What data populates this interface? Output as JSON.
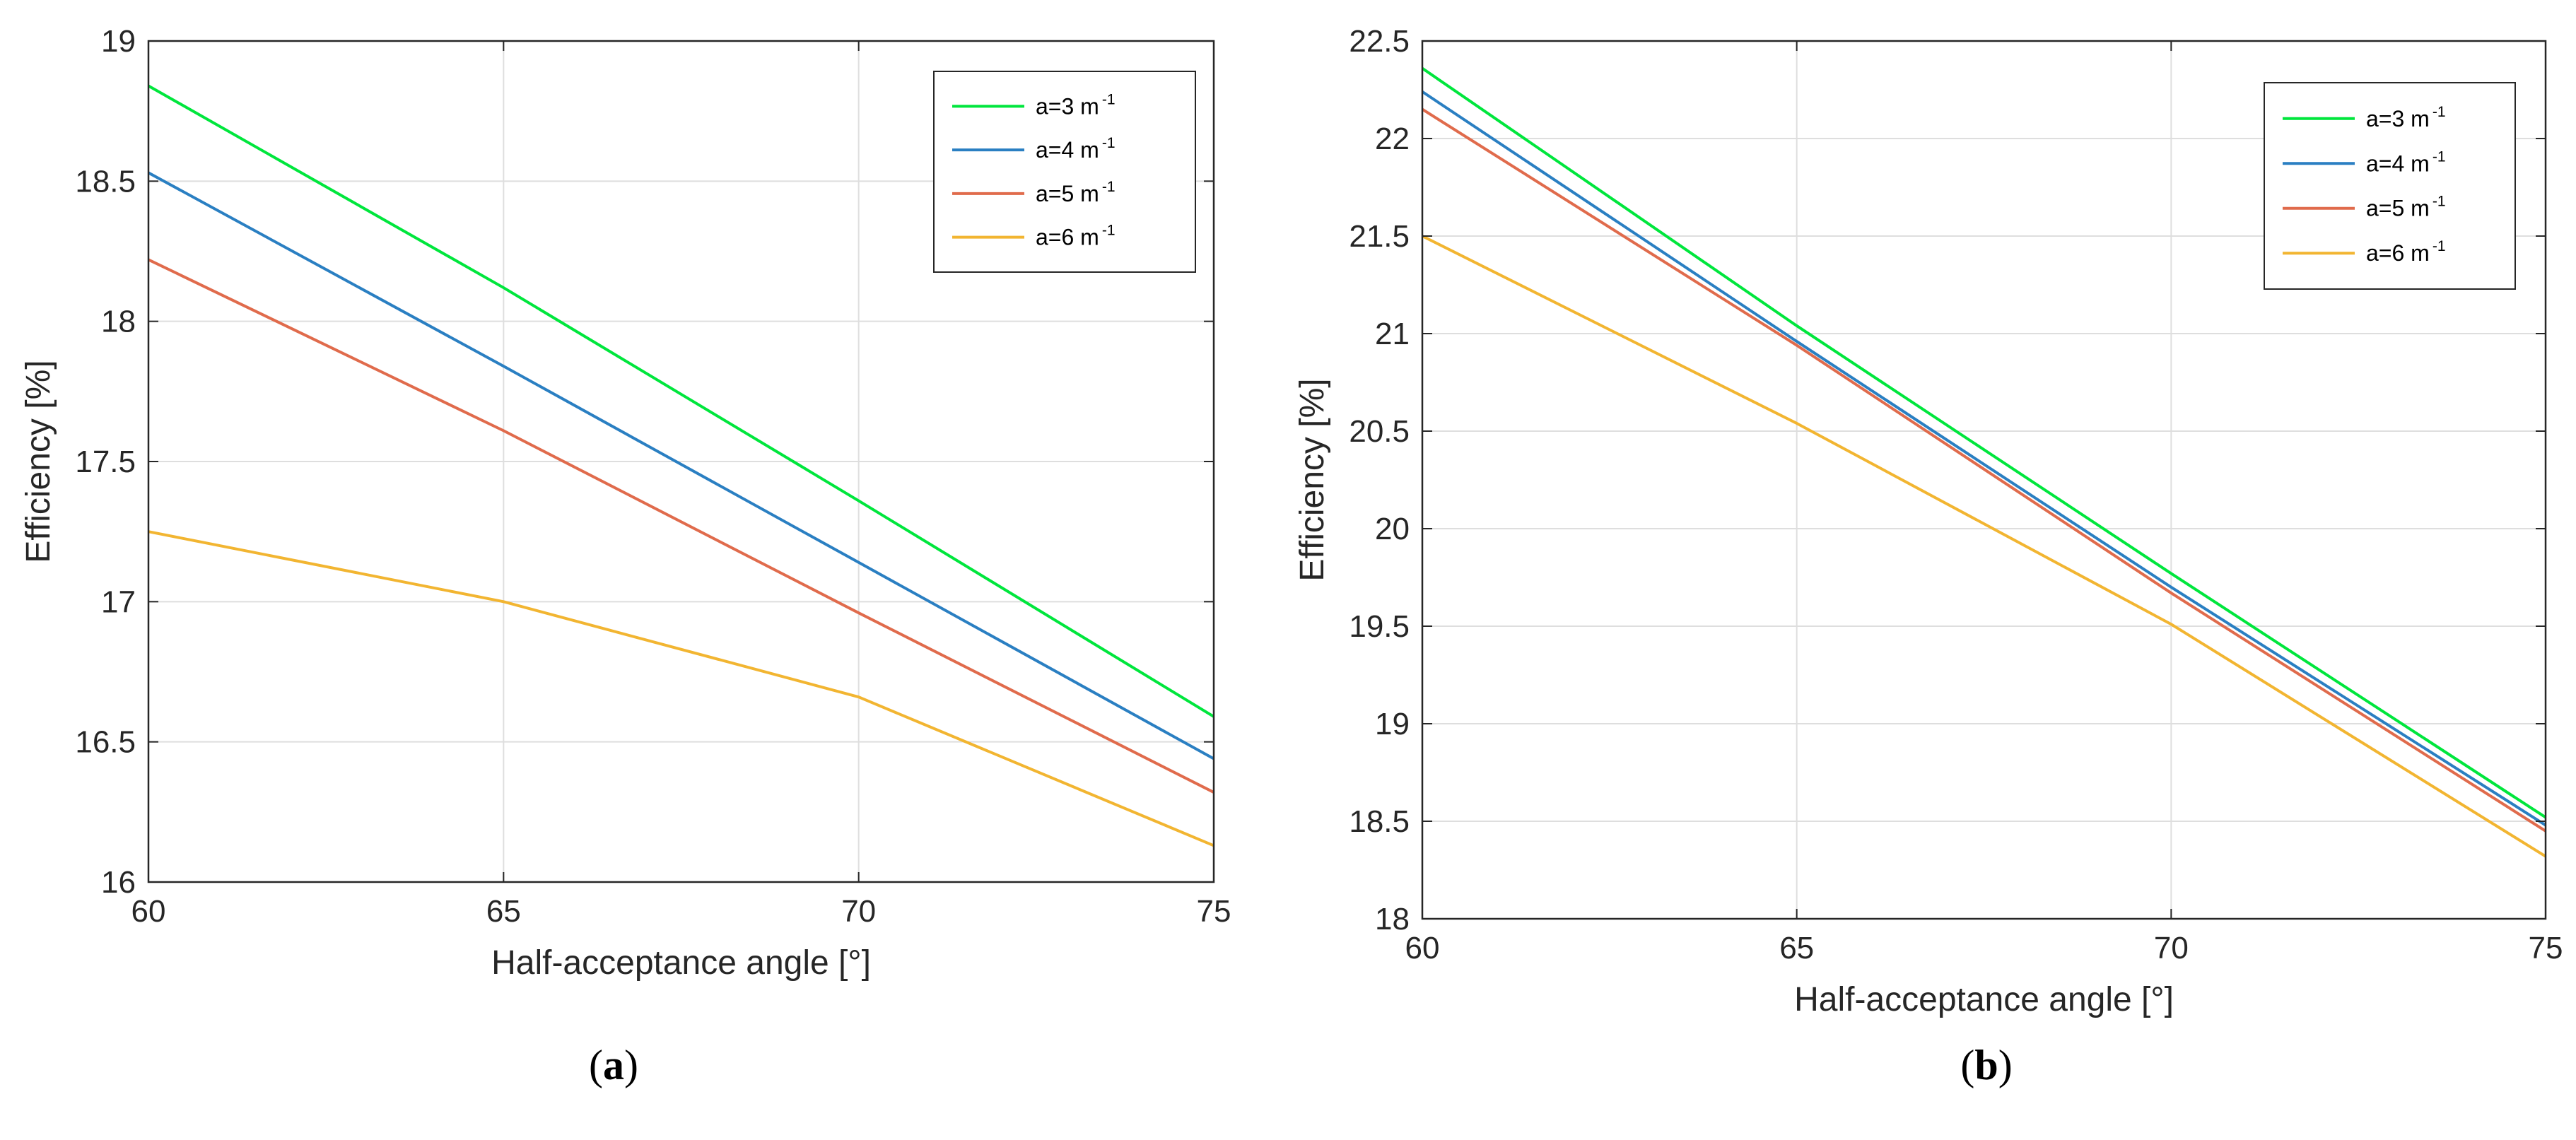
{
  "chart_data": [
    {
      "type": "line",
      "panel_label": "a",
      "xlabel": "Half-acceptance angle [°]",
      "ylabel": "Efficiency [%]",
      "xlim": [
        60,
        75
      ],
      "ylim": [
        16,
        19
      ],
      "xticks": [
        60,
        65,
        70,
        75
      ],
      "yticks": [
        16,
        16.5,
        17,
        17.5,
        18,
        18.5,
        19
      ],
      "grid": true,
      "legend_position": "top-right",
      "x": [
        60,
        65,
        70,
        75
      ],
      "series": [
        {
          "name": "a=3 m-1",
          "label_main": "a=3 m",
          "label_sup": "-1",
          "color": "#00e63c",
          "values": [
            18.84,
            18.12,
            17.36,
            16.59
          ]
        },
        {
          "name": "a=4 m-1",
          "label_main": "a=4 m",
          "label_sup": "-1",
          "color": "#2a7fc2",
          "values": [
            18.53,
            17.84,
            17.14,
            16.44
          ]
        },
        {
          "name": "a=5 m-1",
          "label_main": "a=5 m",
          "label_sup": "-1",
          "color": "#e06b4c",
          "values": [
            18.22,
            17.61,
            16.96,
            16.32
          ]
        },
        {
          "name": "a=6 m-1",
          "label_main": "a=6 m",
          "label_sup": "-1",
          "color": "#f2b531",
          "values": [
            17.25,
            17.0,
            16.66,
            16.13
          ]
        }
      ]
    },
    {
      "type": "line",
      "panel_label": "b",
      "xlabel": "Half-acceptance angle [°]",
      "ylabel": "Efficiency [%]",
      "xlim": [
        60,
        75
      ],
      "ylim": [
        18,
        22.5
      ],
      "xticks": [
        60,
        65,
        70,
        75
      ],
      "yticks": [
        18,
        18.5,
        19,
        19.5,
        20,
        20.5,
        21,
        21.5,
        22,
        22.5
      ],
      "grid": true,
      "legend_position": "top-right",
      "x": [
        60,
        65,
        70,
        75
      ],
      "series": [
        {
          "name": "a=3 m-1",
          "label_main": "a=3 m",
          "label_sup": "-1",
          "color": "#00e63c",
          "values": [
            22.36,
            21.04,
            19.77,
            18.52
          ]
        },
        {
          "name": "a=4 m-1",
          "label_main": "a=4 m",
          "label_sup": "-1",
          "color": "#2a7fc2",
          "values": [
            22.24,
            20.96,
            19.7,
            18.48
          ]
        },
        {
          "name": "a=5 m-1",
          "label_main": "a=5 m",
          "label_sup": "-1",
          "color": "#e06b4c",
          "values": [
            22.15,
            20.94,
            19.67,
            18.45
          ]
        },
        {
          "name": "a=6 m-1",
          "label_main": "a=6 m",
          "label_sup": "-1",
          "color": "#f2b531",
          "values": [
            21.5,
            20.54,
            19.51,
            18.32
          ]
        }
      ]
    }
  ]
}
